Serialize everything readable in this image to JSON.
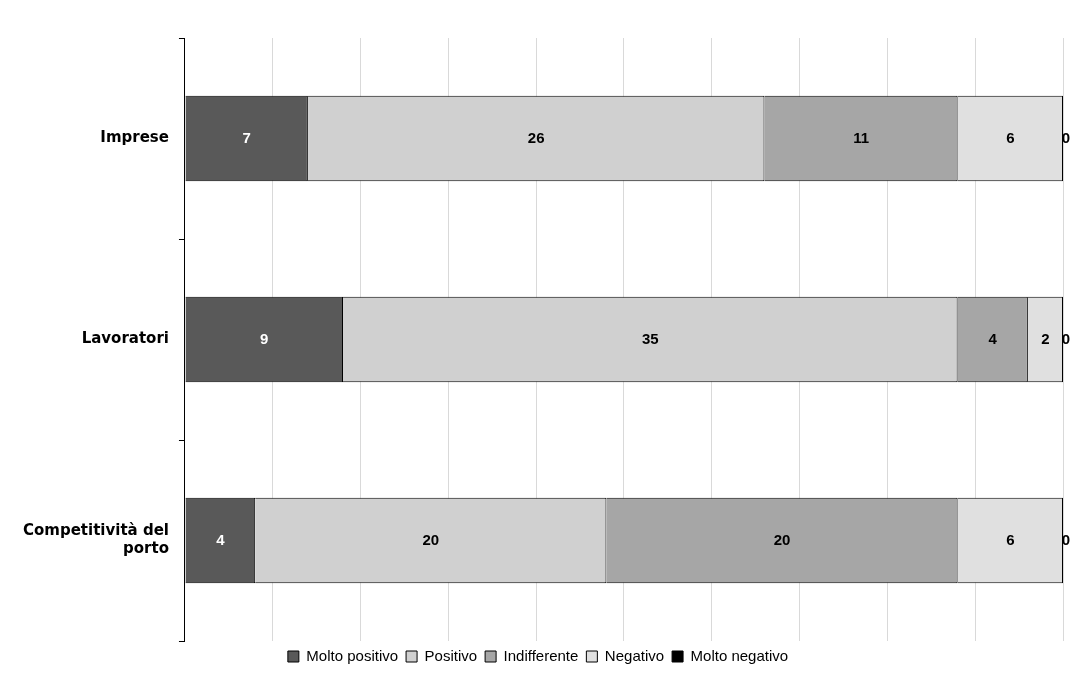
{
  "chart_data": {
    "type": "bar",
    "orientation": "horizontal",
    "stacked": true,
    "categories": [
      "Imprese",
      "Lavoratori",
      "Competitività del porto"
    ],
    "series": [
      {
        "name": "Molto positivo",
        "color": "#595959",
        "values": [
          7,
          9,
          4
        ]
      },
      {
        "name": "Positivo",
        "color": "#d0d0d0",
        "values": [
          26,
          35,
          20
        ]
      },
      {
        "name": "Indifferente",
        "color": "#a6a6a6",
        "values": [
          11,
          4,
          20
        ]
      },
      {
        "name": "Negativo",
        "color": "#e0e0e0",
        "values": [
          6,
          2,
          6
        ]
      },
      {
        "name": "Molto negativo",
        "color": "#000000",
        "values": [
          0,
          0,
          0
        ]
      }
    ],
    "xlim": [
      0,
      50
    ],
    "xticks": [
      0,
      5,
      10,
      15,
      20,
      25,
      30,
      35,
      40,
      45,
      50
    ],
    "tick_labels": "y",
    "grid": "x",
    "legend": "bottom",
    "data_labels": true
  }
}
